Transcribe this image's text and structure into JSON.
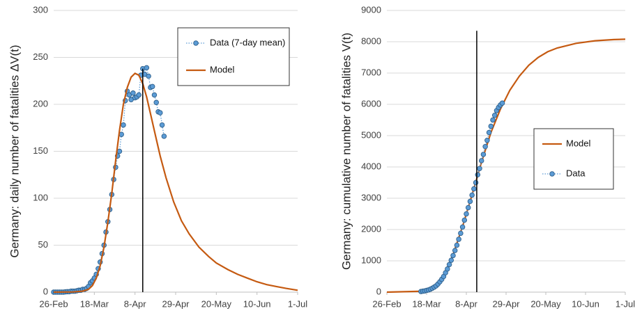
{
  "chart_data": [
    {
      "type": "line",
      "y_label": "Germany: daily number of fatalities ΔV(t)",
      "xlim": [
        0,
        126
      ],
      "xticks": [
        {
          "value": 0,
          "label": "26-Feb"
        },
        {
          "value": 21,
          "label": "18-Mar"
        },
        {
          "value": 42,
          "label": "8-Apr"
        },
        {
          "value": 63,
          "label": "29-Apr"
        },
        {
          "value": 84,
          "label": "20-May"
        },
        {
          "value": 105,
          "label": "10-Jun"
        },
        {
          "value": 126,
          "label": "1-Jul"
        }
      ],
      "ylim": [
        0,
        300
      ],
      "yticks": [
        0,
        50,
        100,
        150,
        200,
        250,
        300
      ],
      "grid": true,
      "legend": "upper right",
      "vline_x": 46,
      "vline_top": 238,
      "series": [
        {
          "name": "Data (7-day mean)",
          "style": "dotted-markers",
          "color": "#5b9bd5",
          "x": [
            0,
            1,
            2,
            3,
            4,
            5,
            6,
            7,
            8,
            9,
            10,
            11,
            12,
            13,
            14,
            15,
            16,
            17,
            18,
            19,
            20,
            21,
            22,
            23,
            24,
            25,
            26,
            27,
            28,
            29,
            30,
            31,
            32,
            33,
            34,
            35,
            36,
            37,
            38,
            39,
            40,
            41,
            42,
            43,
            44,
            45,
            46,
            47,
            48,
            49,
            50,
            51,
            52,
            53,
            54,
            55,
            56,
            57
          ],
          "values": [
            0,
            0,
            0,
            0,
            0,
            0,
            0.3,
            0.5,
            0.5,
            1,
            1,
            1,
            1.5,
            2,
            2,
            3,
            3,
            4,
            6,
            10,
            12,
            15,
            19,
            25,
            32,
            41,
            50,
            64,
            75,
            88,
            104,
            120,
            133,
            145,
            150,
            168,
            178,
            204,
            214,
            210,
            205,
            212,
            207,
            208,
            210,
            231,
            238,
            232,
            239,
            230,
            218,
            219,
            210,
            202,
            192,
            191,
            178,
            166
          ]
        },
        {
          "name": "Model",
          "style": "line",
          "color": "#c55a11",
          "x": [
            0,
            10,
            15,
            18,
            20,
            22,
            24,
            26,
            28,
            30,
            32,
            34,
            36,
            38,
            40,
            42,
            44,
            46,
            48,
            50,
            52,
            55,
            58,
            62,
            66,
            70,
            75,
            80,
            84,
            90,
            95,
            100,
            105,
            110,
            115,
            120,
            126
          ],
          "values": [
            0,
            0.2,
            1,
            3,
            7,
            15,
            28,
            48,
            75,
            105,
            140,
            172,
            200,
            218,
            229,
            233,
            231,
            222,
            208,
            190,
            172,
            145,
            122,
            96,
            76,
            62,
            48,
            38,
            31,
            24,
            19,
            15,
            11,
            8,
            6,
            4,
            2
          ]
        }
      ]
    },
    {
      "type": "line",
      "y_label": "Germany: cumulative number of fatalities V(t)",
      "xlim": [
        0,
        126
      ],
      "xticks": [
        {
          "value": 0,
          "label": "26-Feb"
        },
        {
          "value": 21,
          "label": "18-Mar"
        },
        {
          "value": 42,
          "label": "8-Apr"
        },
        {
          "value": 63,
          "label": "29-Apr"
        },
        {
          "value": 84,
          "label": "20-May"
        },
        {
          "value": 105,
          "label": "10-Jun"
        },
        {
          "value": 126,
          "label": "1-Jul"
        }
      ],
      "ylim": [
        0,
        9000
      ],
      "yticks": [
        0,
        1000,
        2000,
        3000,
        4000,
        5000,
        6000,
        7000,
        8000,
        9000
      ],
      "grid": true,
      "legend": "center right",
      "vline_x": 47.5,
      "vline_top": 8350,
      "series": [
        {
          "name": "Model",
          "style": "line",
          "color": "#c55a11",
          "x": [
            0,
            20,
            25,
            30,
            35,
            40,
            45,
            50,
            55,
            60,
            65,
            70,
            75,
            80,
            85,
            90,
            100,
            110,
            120,
            126
          ],
          "values": [
            0,
            30,
            150,
            500,
            1200,
            2100,
            3100,
            4150,
            5100,
            5850,
            6450,
            6900,
            7250,
            7500,
            7680,
            7800,
            7950,
            8030,
            8070,
            8080
          ]
        },
        {
          "name": "Data",
          "style": "dotted-markers",
          "color": "#5b9bd5",
          "x": [
            18,
            19,
            20,
            21,
            22,
            23,
            24,
            25,
            26,
            27,
            28,
            29,
            30,
            31,
            32,
            33,
            34,
            35,
            36,
            37,
            38,
            39,
            40,
            41,
            42,
            43,
            44,
            45,
            46,
            47,
            48,
            49,
            50,
            51,
            52,
            53,
            54,
            55,
            56,
            57,
            58,
            59,
            60,
            61
          ],
          "values": [
            20,
            30,
            40,
            55,
            70,
            95,
            125,
            160,
            200,
            260,
            330,
            410,
            500,
            620,
            740,
            880,
            1020,
            1170,
            1330,
            1500,
            1690,
            1880,
            2080,
            2300,
            2500,
            2700,
            2900,
            3100,
            3300,
            3500,
            3750,
            3950,
            4200,
            4400,
            4650,
            4850,
            5100,
            5300,
            5500,
            5650,
            5800,
            5900,
            5980,
            6040
          ]
        }
      ]
    }
  ]
}
